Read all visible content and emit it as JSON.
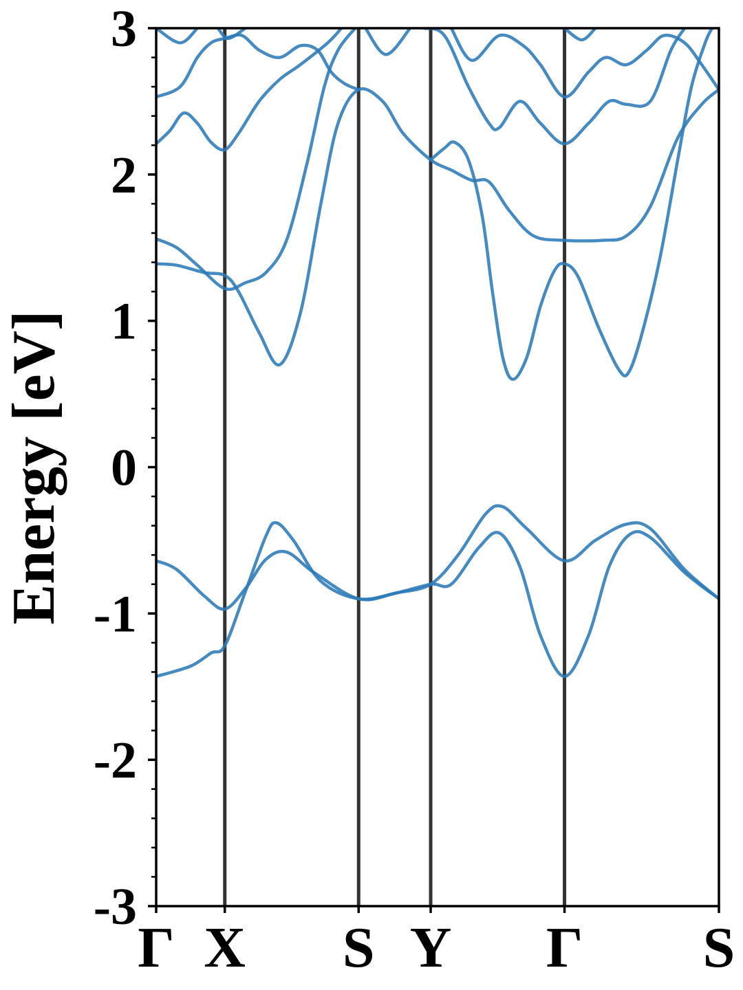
{
  "chart_data": {
    "type": "line",
    "ylabel": "Energy [eV]",
    "xlabel": "",
    "title": "",
    "ylim": [
      -3,
      3
    ],
    "xlim": [
      0,
      8.2
    ],
    "yticks": [
      "-3",
      "-2",
      "-1",
      "0",
      "1",
      "2",
      "3"
    ],
    "y_minor_step": 0.2,
    "grid": false,
    "legend": "none",
    "line_color": "#2b7bba",
    "kline_color": "#333333",
    "high_symmetry_points": [
      {
        "label": "Γ",
        "x": 0.0
      },
      {
        "label": "X",
        "x": 1.0
      },
      {
        "label": "S",
        "x": 2.95
      },
      {
        "label": "Y",
        "x": 4.0
      },
      {
        "label": "Γ",
        "x": 5.95
      },
      {
        "label": "S",
        "x": 8.2
      }
    ],
    "series": [
      {
        "values": [
          [
            0.0,
            -1.43
          ],
          [
            0.5,
            -1.36
          ],
          [
            0.8,
            -1.27
          ],
          [
            1.0,
            -1.22
          ],
          [
            1.3,
            -0.85
          ],
          [
            1.6,
            -0.47
          ],
          [
            1.75,
            -0.38
          ],
          [
            2.0,
            -0.5
          ],
          [
            2.4,
            -0.78
          ],
          [
            2.95,
            -0.9
          ],
          [
            3.5,
            -0.86
          ],
          [
            4.0,
            -0.8
          ],
          [
            4.3,
            -0.8
          ],
          [
            4.7,
            -0.55
          ],
          [
            5.0,
            -0.45
          ],
          [
            5.3,
            -0.68
          ],
          [
            5.6,
            -1.15
          ],
          [
            5.95,
            -1.43
          ],
          [
            6.3,
            -1.15
          ],
          [
            6.6,
            -0.68
          ],
          [
            6.9,
            -0.46
          ],
          [
            7.2,
            -0.48
          ],
          [
            7.7,
            -0.72
          ],
          [
            8.2,
            -0.9
          ]
        ]
      },
      {
        "values": [
          [
            0.0,
            -0.64
          ],
          [
            0.3,
            -0.7
          ],
          [
            0.7,
            -0.88
          ],
          [
            1.0,
            -0.97
          ],
          [
            1.3,
            -0.83
          ],
          [
            1.6,
            -0.63
          ],
          [
            1.9,
            -0.58
          ],
          [
            2.3,
            -0.72
          ],
          [
            2.95,
            -0.9
          ],
          [
            3.5,
            -0.86
          ],
          [
            4.0,
            -0.8
          ],
          [
            4.4,
            -0.6
          ],
          [
            4.8,
            -0.32
          ],
          [
            5.05,
            -0.27
          ],
          [
            5.4,
            -0.42
          ],
          [
            5.95,
            -0.64
          ],
          [
            6.4,
            -0.5
          ],
          [
            6.85,
            -0.39
          ],
          [
            7.2,
            -0.42
          ],
          [
            7.7,
            -0.7
          ],
          [
            8.2,
            -0.9
          ]
        ]
      },
      {
        "values": [
          [
            0.0,
            1.39
          ],
          [
            0.3,
            1.38
          ],
          [
            0.7,
            1.33
          ],
          [
            1.0,
            1.31
          ],
          [
            1.2,
            1.2
          ],
          [
            1.5,
            0.92
          ],
          [
            1.8,
            0.7
          ],
          [
            2.1,
            1.05
          ],
          [
            2.4,
            1.8
          ],
          [
            2.65,
            2.35
          ],
          [
            2.95,
            2.58
          ],
          [
            3.3,
            2.5
          ],
          [
            3.6,
            2.28
          ],
          [
            4.0,
            2.1
          ],
          [
            4.3,
            2.03
          ],
          [
            4.6,
            1.96
          ],
          [
            4.85,
            1.95
          ],
          [
            5.15,
            1.75
          ],
          [
            5.5,
            1.58
          ],
          [
            5.95,
            1.55
          ],
          [
            6.5,
            1.55
          ],
          [
            6.85,
            1.58
          ],
          [
            7.2,
            1.78
          ],
          [
            7.6,
            2.25
          ],
          [
            7.95,
            2.48
          ],
          [
            8.2,
            2.58
          ]
        ]
      },
      {
        "values": [
          [
            0.0,
            1.56
          ],
          [
            0.3,
            1.5
          ],
          [
            0.6,
            1.38
          ],
          [
            1.0,
            1.22
          ],
          [
            1.3,
            1.26
          ],
          [
            1.6,
            1.33
          ],
          [
            1.9,
            1.55
          ],
          [
            2.2,
            2.08
          ],
          [
            2.45,
            2.6
          ],
          [
            2.65,
            2.85
          ],
          [
            2.9,
            3.0
          ]
        ]
      },
      {
        "values": [
          [
            3.9,
            3.0
          ],
          [
            4.2,
            2.95
          ],
          [
            4.55,
            2.6
          ],
          [
            4.85,
            2.35
          ],
          [
            5.0,
            2.32
          ],
          [
            5.3,
            2.5
          ],
          [
            5.6,
            2.35
          ],
          [
            5.95,
            2.21
          ],
          [
            6.3,
            2.35
          ],
          [
            6.6,
            2.5
          ],
          [
            6.85,
            2.48
          ],
          [
            7.2,
            2.5
          ],
          [
            7.5,
            2.85
          ],
          [
            7.7,
            3.0
          ]
        ]
      },
      {
        "values": [
          [
            4.0,
            2.1
          ],
          [
            4.2,
            2.18
          ],
          [
            4.35,
            2.22
          ],
          [
            4.55,
            2.1
          ],
          [
            4.75,
            1.72
          ],
          [
            4.9,
            1.2
          ],
          [
            5.05,
            0.75
          ],
          [
            5.2,
            0.6
          ],
          [
            5.4,
            0.75
          ],
          [
            5.6,
            1.1
          ],
          [
            5.8,
            1.34
          ],
          [
            5.95,
            1.39
          ],
          [
            6.15,
            1.3
          ],
          [
            6.45,
            0.95
          ],
          [
            6.75,
            0.66
          ],
          [
            6.9,
            0.66
          ],
          [
            7.1,
            0.95
          ],
          [
            7.35,
            1.45
          ],
          [
            7.6,
            2.1
          ],
          [
            7.8,
            2.6
          ],
          [
            8.0,
            2.9
          ],
          [
            8.1,
            3.0
          ]
        ]
      },
      {
        "values": [
          [
            0.0,
            2.21
          ],
          [
            0.2,
            2.3
          ],
          [
            0.4,
            2.42
          ],
          [
            0.6,
            2.35
          ],
          [
            0.8,
            2.22
          ],
          [
            1.0,
            2.17
          ],
          [
            1.2,
            2.28
          ],
          [
            1.5,
            2.5
          ],
          [
            1.8,
            2.65
          ],
          [
            2.1,
            2.75
          ],
          [
            2.5,
            2.9
          ],
          [
            2.7,
            3.0
          ]
        ]
      },
      {
        "values": [
          [
            0.0,
            2.53
          ],
          [
            0.35,
            2.6
          ],
          [
            0.6,
            2.8
          ],
          [
            0.8,
            2.9
          ],
          [
            1.0,
            2.93
          ],
          [
            1.25,
            2.95
          ],
          [
            1.5,
            2.85
          ],
          [
            1.8,
            2.8
          ],
          [
            2.1,
            2.88
          ],
          [
            2.35,
            2.85
          ],
          [
            2.55,
            2.7
          ],
          [
            2.75,
            2.62
          ],
          [
            2.95,
            2.58
          ]
        ]
      },
      {
        "values": [
          [
            0.0,
            3.0
          ],
          [
            0.35,
            2.9
          ],
          [
            0.6,
            3.0
          ]
        ]
      },
      {
        "values": [
          [
            0.9,
            3.0
          ],
          [
            1.05,
            2.93
          ],
          [
            1.3,
            3.0
          ]
        ]
      },
      {
        "values": [
          [
            3.05,
            3.0
          ],
          [
            3.35,
            2.82
          ],
          [
            3.7,
            3.0
          ]
        ]
      },
      {
        "values": [
          [
            4.3,
            3.0
          ],
          [
            4.6,
            2.78
          ],
          [
            5.0,
            2.95
          ],
          [
            5.35,
            2.88
          ],
          [
            5.6,
            2.75
          ],
          [
            5.95,
            2.53
          ],
          [
            6.3,
            2.7
          ],
          [
            6.55,
            2.8
          ],
          [
            6.85,
            2.75
          ],
          [
            7.15,
            2.85
          ],
          [
            7.4,
            2.95
          ],
          [
            7.7,
            2.9
          ],
          [
            7.95,
            2.75
          ],
          [
            8.2,
            2.58
          ]
        ]
      },
      {
        "values": [
          [
            5.95,
            3.0
          ],
          [
            6.2,
            2.92
          ],
          [
            6.4,
            3.0
          ]
        ]
      }
    ]
  }
}
